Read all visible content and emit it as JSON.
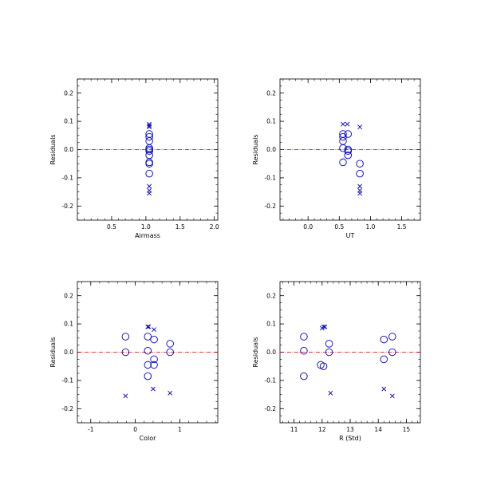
{
  "chart_data": [
    {
      "type": "scatter",
      "title": "",
      "xlabel": "Airmass",
      "ylabel": "Residuals",
      "xlim": [
        0.0,
        2.05
      ],
      "ylim": [
        -0.25,
        0.25
      ],
      "xticks": [
        0.5,
        1.0,
        1.5,
        2.0
      ],
      "xtick_labels": [
        "0.5",
        "1.0",
        "1.5",
        "2.0"
      ],
      "yticks": [
        -0.2,
        -0.1,
        0.0,
        0.1,
        0.2
      ],
      "ytick_labels": [
        "-0.2",
        "-0.1",
        "0.0",
        "0.1",
        "0.2"
      ],
      "xminor": 0.1,
      "yminor": 0.025,
      "zero_line_color": "#cc0000",
      "series": [
        {
          "marker": "circle",
          "color": "#0000cc",
          "x": [
            1.05,
            1.05,
            1.05,
            1.05,
            1.05,
            1.05,
            1.05,
            1.05,
            1.05,
            1.05
          ],
          "y": [
            0.055,
            0.045,
            0.03,
            0.005,
            0.0,
            -0.005,
            -0.02,
            -0.045,
            -0.05,
            -0.085
          ]
        },
        {
          "marker": "x",
          "color": "#0000cc",
          "x": [
            1.05,
            1.05,
            1.05,
            1.05,
            1.05,
            1.05
          ],
          "y": [
            0.09,
            0.085,
            0.08,
            -0.13,
            -0.145,
            -0.155
          ]
        }
      ]
    },
    {
      "type": "scatter",
      "title": "",
      "xlabel": "UT",
      "ylabel": "Residuals",
      "xlim": [
        -0.45,
        1.8
      ],
      "ylim": [
        -0.25,
        0.25
      ],
      "xticks": [
        0.0,
        0.5,
        1.0,
        1.5
      ],
      "xtick_labels": [
        "0.0",
        "0.5",
        "1.0",
        "1.5"
      ],
      "yticks": [
        -0.2,
        -0.1,
        0.0,
        0.1,
        0.2
      ],
      "ytick_labels": [
        "-0.2",
        "-0.1",
        "0.0",
        "0.1",
        "0.2"
      ],
      "xminor": 0.1,
      "yminor": 0.025,
      "zero_line_color": "#cc0000",
      "series": [
        {
          "marker": "circle",
          "color": "#0000cc",
          "x": [
            0.56,
            0.56,
            0.56,
            0.56,
            0.56,
            0.64,
            0.64,
            0.64,
            0.64,
            0.83,
            0.83
          ],
          "y": [
            0.055,
            0.045,
            0.03,
            0.005,
            -0.045,
            0.055,
            0.0,
            -0.005,
            -0.02,
            -0.05,
            -0.085
          ]
        },
        {
          "marker": "x",
          "color": "#0000cc",
          "x": [
            0.56,
            0.63,
            0.83,
            0.83,
            0.83,
            0.83
          ],
          "y": [
            0.09,
            0.09,
            0.08,
            -0.13,
            -0.145,
            -0.155
          ]
        }
      ]
    },
    {
      "type": "scatter",
      "title": "",
      "xlabel": "Color",
      "ylabel": "Residuals",
      "xlim": [
        -1.3,
        1.85
      ],
      "ylim": [
        -0.25,
        0.25
      ],
      "xticks": [
        -1,
        0,
        1
      ],
      "xtick_labels": [
        "-1",
        "0",
        "1"
      ],
      "yticks": [
        -0.2,
        -0.1,
        0.0,
        0.1,
        0.2
      ],
      "ytick_labels": [
        "-0.2",
        "-0.1",
        "0.0",
        "0.1",
        "0.2"
      ],
      "xminor": 0.2,
      "yminor": 0.025,
      "zero_line_color": "#cc0000",
      "series": [
        {
          "marker": "circle",
          "color": "#0000cc",
          "x": [
            -0.22,
            -0.22,
            0.28,
            0.28,
            0.28,
            0.28,
            0.42,
            0.42,
            0.42,
            0.78,
            0.78
          ],
          "y": [
            0.055,
            0.0,
            0.055,
            0.005,
            -0.045,
            -0.085,
            0.045,
            -0.025,
            -0.045,
            0.03,
            0.0
          ]
        },
        {
          "marker": "x",
          "color": "#0000cc",
          "x": [
            0.28,
            0.3,
            0.42,
            -0.22,
            0.4,
            0.78
          ],
          "y": [
            0.09,
            0.09,
            0.08,
            -0.155,
            -0.13,
            -0.145
          ]
        }
      ]
    },
    {
      "type": "scatter",
      "title": "",
      "xlabel": "R (Std)",
      "ylabel": "Residuals",
      "xlim": [
        10.5,
        15.5
      ],
      "ylim": [
        -0.25,
        0.25
      ],
      "xticks": [
        11,
        12,
        13,
        14,
        15
      ],
      "xtick_labels": [
        "11",
        "12",
        "13",
        "14",
        "15"
      ],
      "yticks": [
        -0.2,
        -0.1,
        0.0,
        0.1,
        0.2
      ],
      "ytick_labels": [
        "-0.2",
        "-0.1",
        "0.0",
        "0.1",
        "0.2"
      ],
      "xminor": 0.2,
      "yminor": 0.025,
      "zero_line_color": "#cc0000",
      "series": [
        {
          "marker": "circle",
          "color": "#0000cc",
          "x": [
            11.35,
            11.35,
            11.35,
            11.95,
            12.05,
            12.25,
            12.25,
            14.2,
            14.2,
            14.5,
            14.5
          ],
          "y": [
            0.055,
            0.005,
            -0.085,
            -0.045,
            -0.05,
            0.03,
            0.0,
            0.045,
            -0.025,
            0.055,
            0.0
          ]
        },
        {
          "marker": "x",
          "color": "#0000cc",
          "x": [
            12.0,
            12.05,
            12.1,
            12.3,
            14.2,
            14.5
          ],
          "y": [
            0.085,
            0.09,
            0.09,
            -0.145,
            -0.13,
            -0.155
          ]
        }
      ]
    }
  ]
}
